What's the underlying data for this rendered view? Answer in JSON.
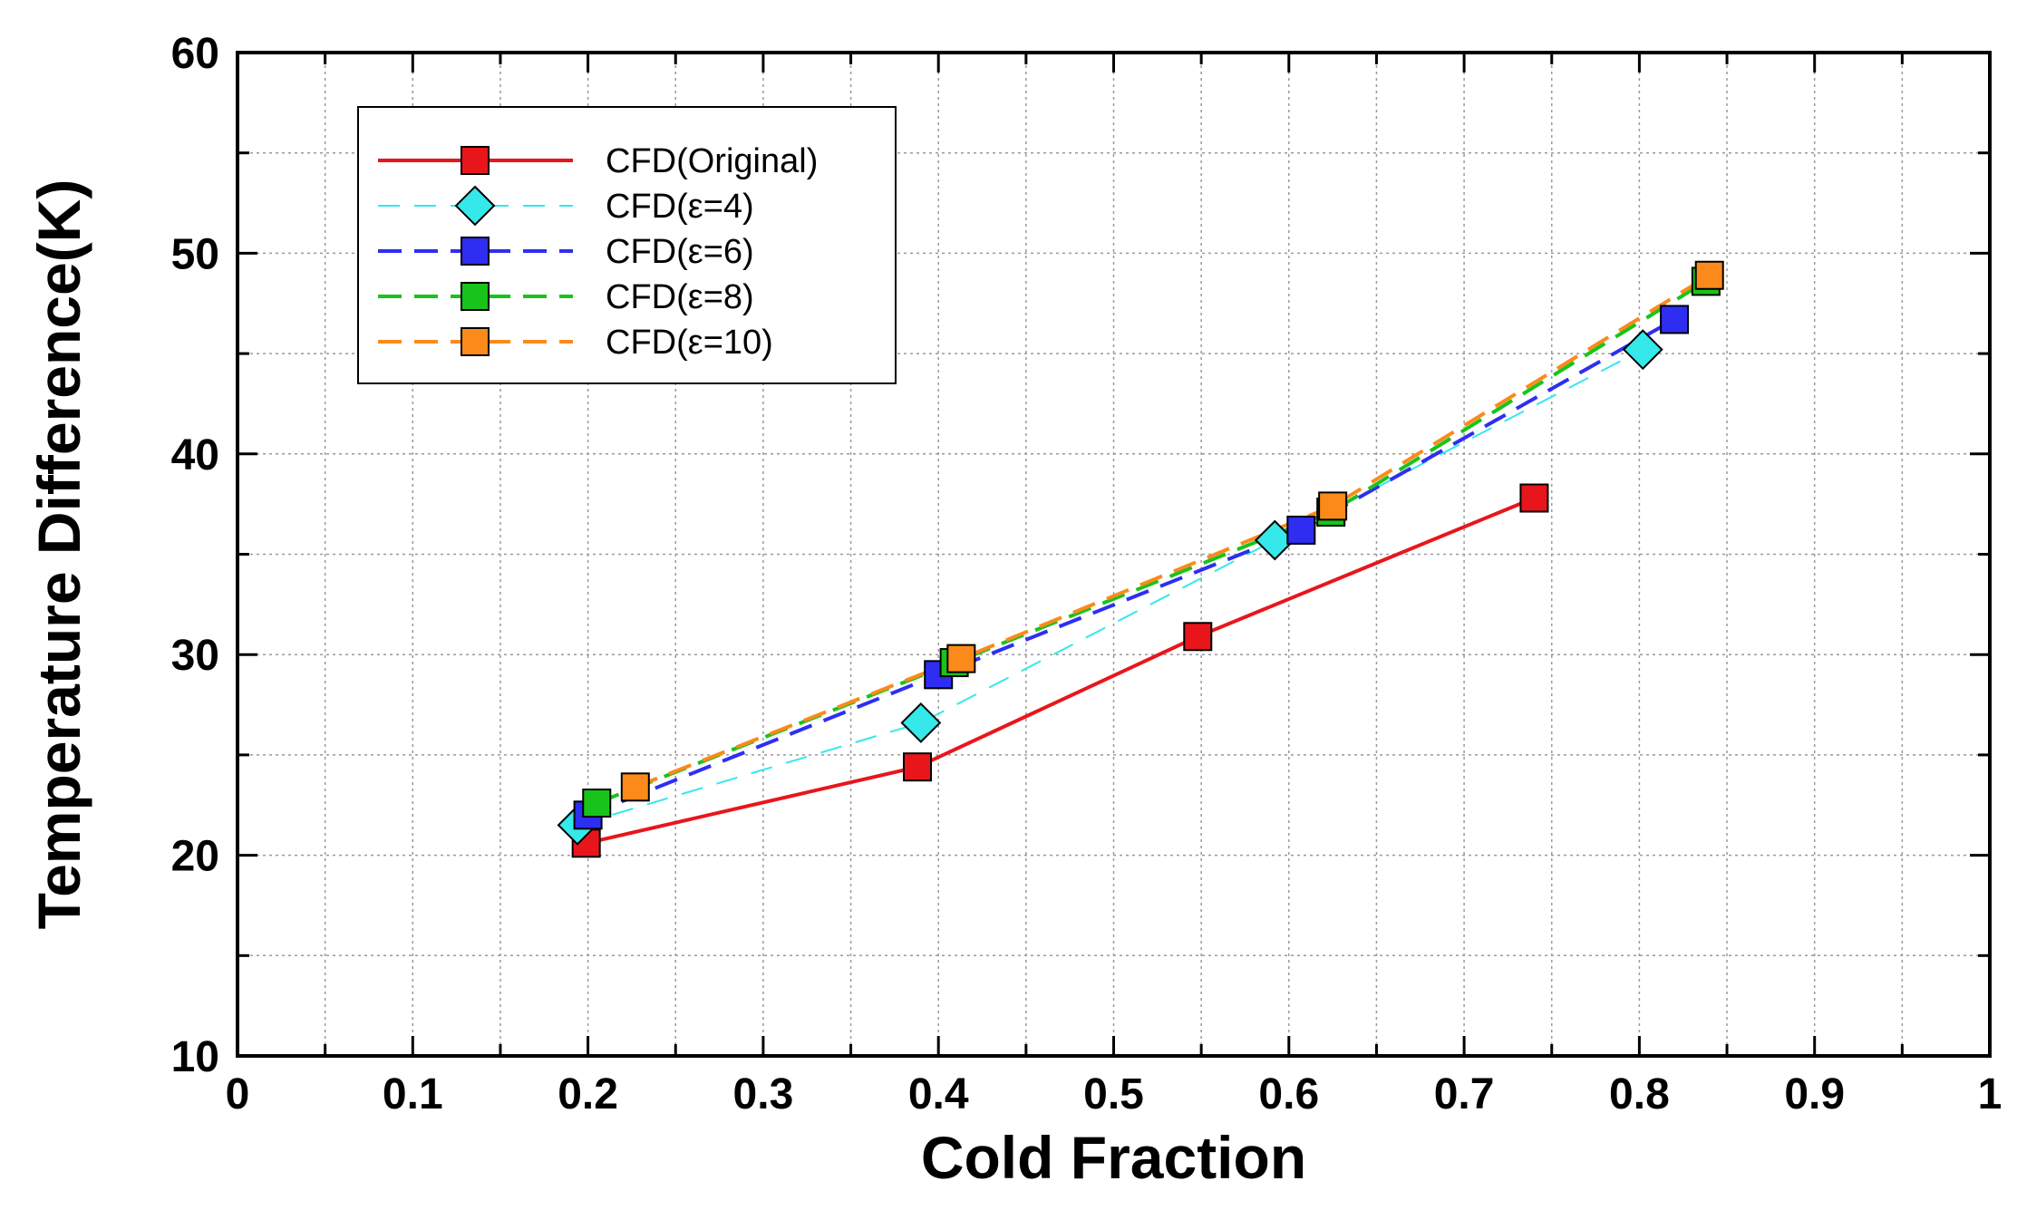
{
  "chart_data": {
    "type": "line",
    "title": "",
    "xlabel": "Cold Fraction",
    "ylabel": "Temperature Difference(K)",
    "xlim": [
      0,
      1
    ],
    "ylim": [
      10,
      60
    ],
    "x_ticks": [
      0,
      0.1,
      0.2,
      0.3,
      0.4,
      0.5,
      0.6,
      0.7,
      0.8,
      0.9,
      1
    ],
    "x_tick_labels": [
      "0",
      "0.1",
      "0.2",
      "0.3",
      "0.4",
      "0.5",
      "0.6",
      "0.7",
      "0.8",
      "0.9",
      "1"
    ],
    "y_ticks": [
      10,
      20,
      30,
      40,
      50,
      60
    ],
    "y_tick_labels": [
      "10",
      "20",
      "30",
      "40",
      "50",
      "60"
    ],
    "grid": true,
    "legend_position": "top-left",
    "series": [
      {
        "name": "CFD(Original)",
        "color": "#e8161b",
        "line_style": "solid",
        "marker": "square",
        "points": [
          [
            0.199,
            20.6
          ],
          [
            0.388,
            24.4
          ],
          [
            0.548,
            30.9
          ],
          [
            0.74,
            37.8
          ]
        ]
      },
      {
        "name": "CFD(ε=4)",
        "color": "#35e8ea",
        "line_style": "thin-dashed",
        "marker": "diamond",
        "points": [
          [
            0.194,
            21.5
          ],
          [
            0.39,
            26.6
          ],
          [
            0.592,
            35.7
          ],
          [
            0.802,
            45.2
          ]
        ]
      },
      {
        "name": "CFD(ε=6)",
        "color": "#2e2ef2",
        "line_style": "dashed",
        "marker": "square",
        "points": [
          [
            0.2,
            22.0
          ],
          [
            0.4,
            29.0
          ],
          [
            0.607,
            36.2
          ],
          [
            0.82,
            46.7
          ]
        ]
      },
      {
        "name": "CFD(ε=8)",
        "color": "#18c419",
        "line_style": "dashed",
        "marker": "square",
        "points": [
          [
            0.205,
            22.6
          ],
          [
            0.409,
            29.6
          ],
          [
            0.624,
            37.1
          ],
          [
            0.838,
            48.6
          ]
        ]
      },
      {
        "name": "CFD(ε=10)",
        "color": "#fb8a1b",
        "line_style": "dashed",
        "marker": "square",
        "points": [
          [
            0.227,
            23.4
          ],
          [
            0.413,
            29.8
          ],
          [
            0.625,
            37.4
          ],
          [
            0.84,
            48.9
          ]
        ]
      }
    ]
  }
}
